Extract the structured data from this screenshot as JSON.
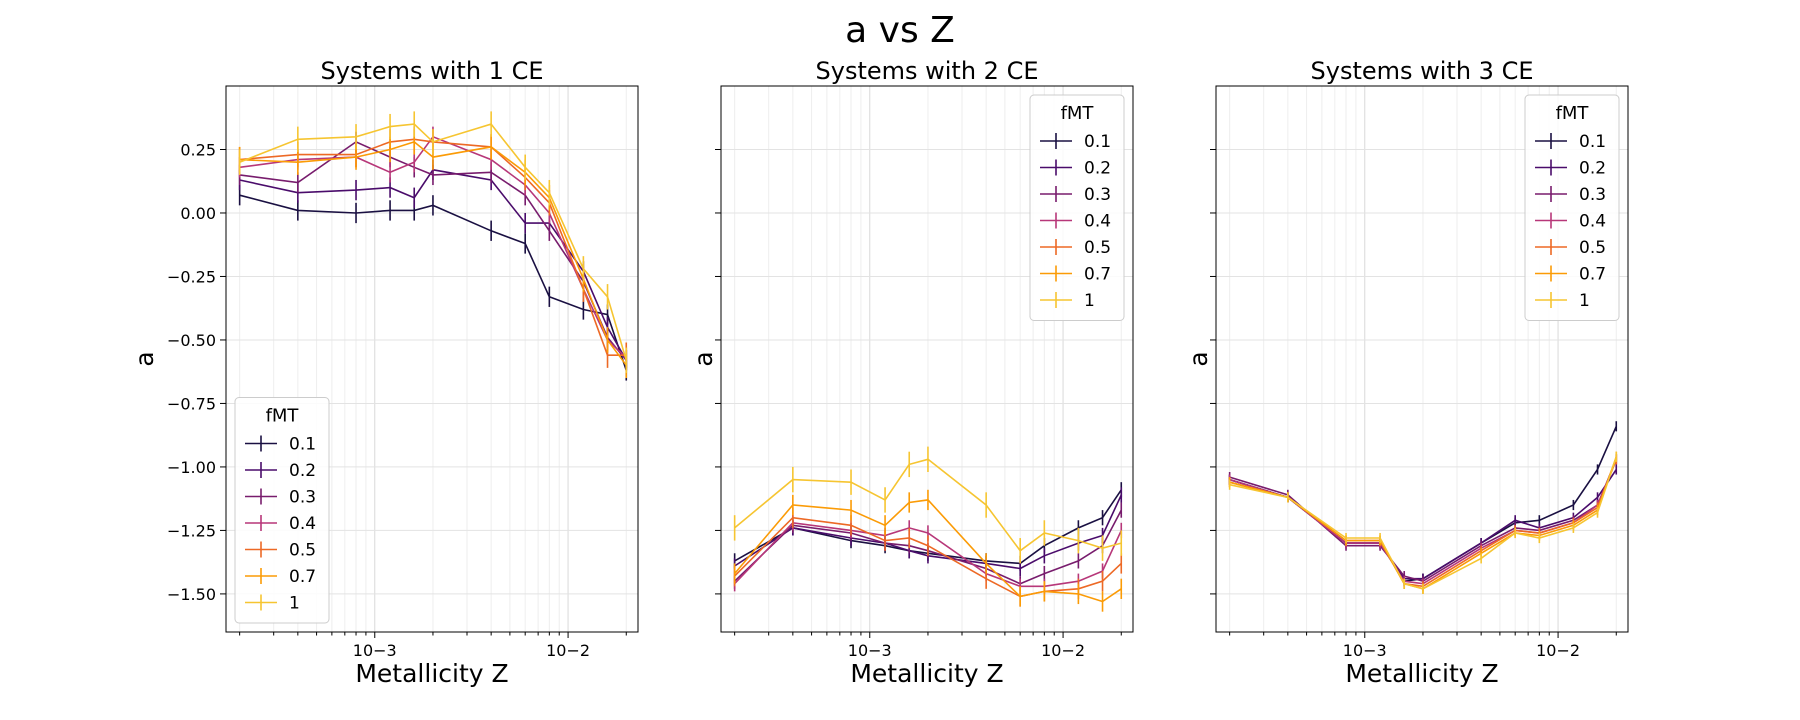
{
  "figure": {
    "suptitle": "a vs Z"
  },
  "chart_data": [
    {
      "type": "line",
      "title": "Systems with 1 CE",
      "xlabel": "Metallicity Z",
      "ylabel": "a",
      "xscale": "log",
      "xlim": [
        0.00017,
        0.023
      ],
      "ylim": [
        -1.65,
        0.5
      ],
      "xticks": [
        {
          "value": 0.001,
          "label": "10−3"
        },
        {
          "value": 0.01,
          "label": "10−2"
        }
      ],
      "yticks": [
        {
          "value": 0.25,
          "label": "0.25"
        },
        {
          "value": 0.0,
          "label": "0.00"
        },
        {
          "value": -0.25,
          "label": "−0.25"
        },
        {
          "value": -0.5,
          "label": "−0.50"
        },
        {
          "value": -0.75,
          "label": "−0.75"
        },
        {
          "value": -1.0,
          "label": "−1.00"
        },
        {
          "value": -1.25,
          "label": "−1.25"
        },
        {
          "value": -1.5,
          "label": "−1.50"
        }
      ],
      "show_yticklabels": true,
      "grid": true,
      "legend": {
        "title": "fMT",
        "placement": "lower left"
      },
      "x": [
        0.0002,
        0.0004,
        0.0008,
        0.0012,
        0.0016,
        0.002,
        0.004,
        0.006,
        0.008,
        0.012,
        0.016,
        0.02
      ],
      "series": [
        {
          "name": "0.1",
          "color": "#1a1042",
          "values": [
            0.07,
            0.01,
            0.0,
            0.01,
            0.01,
            0.03,
            -0.07,
            -0.12,
            -0.33,
            -0.38,
            -0.4,
            -0.62
          ],
          "err": 0.04
        },
        {
          "name": "0.2",
          "color": "#4a0c6b",
          "values": [
            0.13,
            0.08,
            0.09,
            0.1,
            0.06,
            0.17,
            0.13,
            -0.04,
            -0.04,
            -0.23,
            -0.45,
            -0.58
          ],
          "err": 0.04
        },
        {
          "name": "0.3",
          "color": "#781c6d",
          "values": [
            0.15,
            0.12,
            0.28,
            0.22,
            0.18,
            0.15,
            0.16,
            0.07,
            -0.07,
            -0.27,
            -0.49,
            -0.58
          ],
          "err": 0.04
        },
        {
          "name": "0.4",
          "color": "#b73779",
          "values": [
            0.18,
            0.21,
            0.22,
            0.16,
            0.2,
            0.3,
            0.21,
            0.11,
            0.0,
            -0.3,
            -0.5,
            -0.57
          ],
          "err": 0.04
        },
        {
          "name": "0.5",
          "color": "#ed6925",
          "values": [
            0.21,
            0.23,
            0.23,
            0.28,
            0.29,
            0.28,
            0.26,
            0.14,
            0.04,
            -0.3,
            -0.56,
            -0.56
          ],
          "err": 0.05
        },
        {
          "name": "0.7",
          "color": "#fb9b06",
          "values": [
            0.21,
            0.2,
            0.22,
            0.25,
            0.28,
            0.22,
            0.26,
            0.16,
            0.06,
            -0.26,
            -0.5,
            -0.6
          ],
          "err": 0.05
        },
        {
          "name": "1",
          "color": "#f6c531",
          "values": [
            0.2,
            0.29,
            0.3,
            0.34,
            0.35,
            0.28,
            0.35,
            0.18,
            0.08,
            -0.22,
            -0.33,
            -0.58
          ],
          "err": 0.05
        }
      ]
    },
    {
      "type": "line",
      "title": "Systems with 2 CE",
      "xlabel": "Metallicity Z",
      "ylabel": "a",
      "xscale": "log",
      "xlim": [
        0.00017,
        0.023
      ],
      "ylim": [
        -1.65,
        0.5
      ],
      "xticks": [
        {
          "value": 0.001,
          "label": "10−3"
        },
        {
          "value": 0.01,
          "label": "10−2"
        }
      ],
      "yticks": [
        {
          "value": 0.25,
          "label": ""
        },
        {
          "value": 0.0,
          "label": ""
        },
        {
          "value": -0.25,
          "label": ""
        },
        {
          "value": -0.5,
          "label": ""
        },
        {
          "value": -0.75,
          "label": ""
        },
        {
          "value": -1.0,
          "label": ""
        },
        {
          "value": -1.25,
          "label": ""
        },
        {
          "value": -1.5,
          "label": ""
        }
      ],
      "show_yticklabels": false,
      "grid": true,
      "legend": {
        "title": "fMT",
        "placement": "upper right"
      },
      "x": [
        0.0002,
        0.0004,
        0.0008,
        0.0012,
        0.0016,
        0.002,
        0.004,
        0.006,
        0.008,
        0.012,
        0.016,
        0.02
      ],
      "series": [
        {
          "name": "0.1",
          "color": "#1a1042",
          "values": [
            -1.37,
            -1.24,
            -1.29,
            -1.31,
            -1.33,
            -1.34,
            -1.37,
            -1.38,
            -1.31,
            -1.24,
            -1.2,
            -1.09
          ],
          "err": 0.03
        },
        {
          "name": "0.2",
          "color": "#4a0c6b",
          "values": [
            -1.39,
            -1.24,
            -1.28,
            -1.3,
            -1.33,
            -1.35,
            -1.38,
            -1.4,
            -1.35,
            -1.3,
            -1.27,
            -1.11
          ],
          "err": 0.03
        },
        {
          "name": "0.3",
          "color": "#781c6d",
          "values": [
            -1.45,
            -1.23,
            -1.26,
            -1.3,
            -1.31,
            -1.33,
            -1.4,
            -1.46,
            -1.42,
            -1.37,
            -1.31,
            -1.17
          ],
          "err": 0.03
        },
        {
          "name": "0.4",
          "color": "#b73779",
          "values": [
            -1.46,
            -1.22,
            -1.25,
            -1.27,
            -1.24,
            -1.26,
            -1.42,
            -1.47,
            -1.47,
            -1.45,
            -1.41,
            -1.25
          ],
          "err": 0.03
        },
        {
          "name": "0.5",
          "color": "#ed6925",
          "values": [
            -1.43,
            -1.2,
            -1.23,
            -1.29,
            -1.28,
            -1.31,
            -1.44,
            -1.51,
            -1.49,
            -1.48,
            -1.45,
            -1.38
          ],
          "err": 0.04
        },
        {
          "name": "0.7",
          "color": "#fb9b06",
          "values": [
            -1.42,
            -1.15,
            -1.17,
            -1.23,
            -1.14,
            -1.13,
            -1.38,
            -1.51,
            -1.49,
            -1.5,
            -1.53,
            -1.48
          ],
          "err": 0.04
        },
        {
          "name": "1",
          "color": "#f6c531",
          "values": [
            -1.24,
            -1.05,
            -1.06,
            -1.13,
            -0.99,
            -0.97,
            -1.15,
            -1.33,
            -1.26,
            -1.29,
            -1.32,
            -1.3
          ],
          "err": 0.05
        }
      ]
    },
    {
      "type": "line",
      "title": "Systems with 3 CE",
      "xlabel": "Metallicity Z",
      "ylabel": "a",
      "xscale": "log",
      "xlim": [
        0.00017,
        0.023
      ],
      "ylim": [
        -1.65,
        0.5
      ],
      "xticks": [
        {
          "value": 0.001,
          "label": "10−3"
        },
        {
          "value": 0.01,
          "label": "10−2"
        }
      ],
      "yticks": [
        {
          "value": 0.25,
          "label": ""
        },
        {
          "value": 0.0,
          "label": ""
        },
        {
          "value": -0.25,
          "label": ""
        },
        {
          "value": -0.5,
          "label": ""
        },
        {
          "value": -0.75,
          "label": ""
        },
        {
          "value": -1.0,
          "label": ""
        },
        {
          "value": -1.25,
          "label": ""
        },
        {
          "value": -1.5,
          "label": ""
        }
      ],
      "show_yticklabels": false,
      "grid": true,
      "legend": {
        "title": "fMT",
        "placement": "upper right"
      },
      "x": [
        0.0002,
        0.0004,
        0.0008,
        0.0012,
        0.0016,
        0.002,
        0.004,
        0.006,
        0.008,
        0.012,
        0.016,
        0.02
      ],
      "series": [
        {
          "name": "0.1",
          "color": "#1a1042",
          "values": [
            -1.05,
            -1.12,
            -1.3,
            -1.3,
            -1.45,
            -1.44,
            -1.3,
            -1.22,
            -1.21,
            -1.15,
            -1.01,
            -0.84
          ],
          "err": 0.02
        },
        {
          "name": "0.2",
          "color": "#4a0c6b",
          "values": [
            -1.05,
            -1.12,
            -1.3,
            -1.3,
            -1.44,
            -1.44,
            -1.3,
            -1.21,
            -1.24,
            -1.2,
            -1.12,
            -1.01
          ],
          "err": 0.02
        },
        {
          "name": "0.3",
          "color": "#781c6d",
          "values": [
            -1.04,
            -1.11,
            -1.31,
            -1.31,
            -1.43,
            -1.45,
            -1.31,
            -1.24,
            -1.25,
            -1.21,
            -1.15,
            -0.97
          ],
          "err": 0.02
        },
        {
          "name": "0.4",
          "color": "#b73779",
          "values": [
            -1.05,
            -1.12,
            -1.3,
            -1.3,
            -1.45,
            -1.46,
            -1.32,
            -1.25,
            -1.26,
            -1.22,
            -1.15,
            -0.97
          ],
          "err": 0.02
        },
        {
          "name": "0.5",
          "color": "#ed6925",
          "values": [
            -1.06,
            -1.12,
            -1.29,
            -1.29,
            -1.46,
            -1.47,
            -1.33,
            -1.25,
            -1.26,
            -1.22,
            -1.16,
            -0.97
          ],
          "err": 0.02
        },
        {
          "name": "0.7",
          "color": "#fb9b06",
          "values": [
            -1.06,
            -1.12,
            -1.29,
            -1.29,
            -1.46,
            -1.48,
            -1.34,
            -1.26,
            -1.27,
            -1.23,
            -1.17,
            -0.96
          ],
          "err": 0.02
        },
        {
          "name": "1",
          "color": "#f6c531",
          "values": [
            -1.07,
            -1.12,
            -1.28,
            -1.28,
            -1.46,
            -1.48,
            -1.36,
            -1.26,
            -1.28,
            -1.24,
            -1.18,
            -0.96
          ],
          "err": 0.02
        }
      ]
    }
  ]
}
